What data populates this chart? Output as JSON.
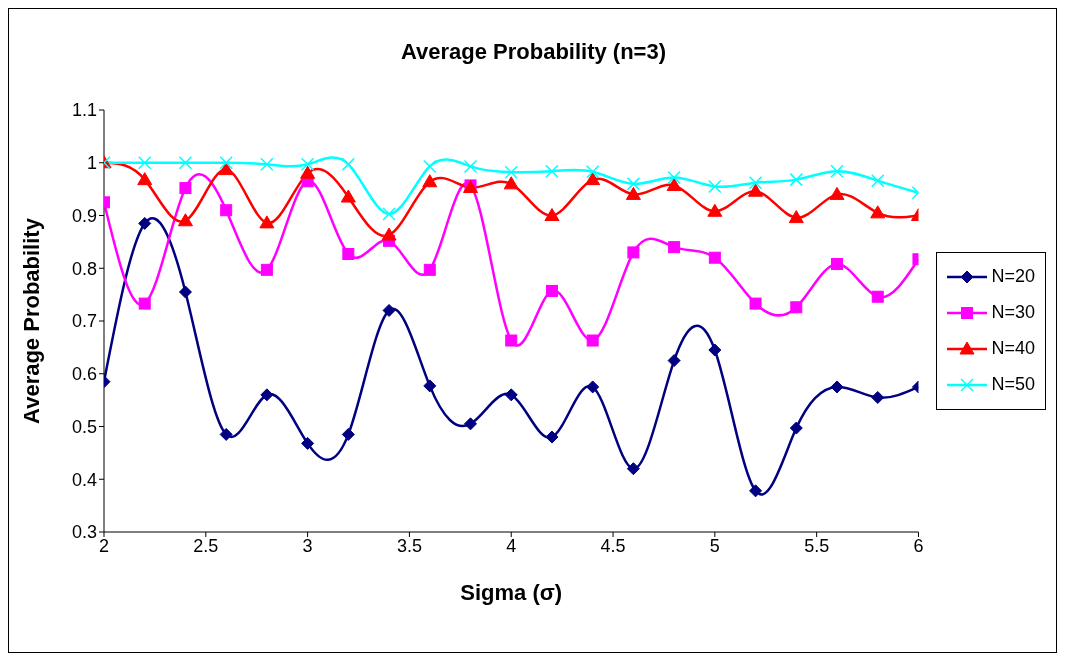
{
  "chart_data": {
    "type": "line",
    "title": "Average Probability (n=3)",
    "xlabel": "Sigma (σ)",
    "ylabel": "Average Probability",
    "x": [
      2,
      2.2,
      2.4,
      2.6,
      2.8,
      3,
      3.2,
      3.4,
      3.6,
      3.8,
      4,
      4.2,
      4.4,
      4.6,
      4.8,
      5,
      5.2,
      5.4,
      5.6,
      5.8,
      6
    ],
    "series": [
      {
        "name": "N=20",
        "color": "#000080",
        "marker": "diamond",
        "values": [
          0.585,
          0.885,
          0.755,
          0.485,
          0.56,
          0.468,
          0.485,
          0.72,
          0.577,
          0.505,
          0.56,
          0.48,
          0.575,
          0.42,
          0.625,
          0.645,
          0.378,
          0.497,
          0.575,
          0.555,
          0.575
        ]
      },
      {
        "name": "N=30",
        "color": "#ff00ff",
        "marker": "square",
        "values": [
          0.925,
          0.733,
          0.952,
          0.91,
          0.797,
          0.965,
          0.827,
          0.852,
          0.797,
          0.957,
          0.663,
          0.757,
          0.663,
          0.83,
          0.84,
          0.82,
          0.733,
          0.726,
          0.808,
          0.746,
          0.817
        ]
      },
      {
        "name": "N=40",
        "color": "#ff0000",
        "marker": "triangle",
        "values": [
          1.0,
          0.968,
          0.89,
          0.987,
          0.886,
          0.98,
          0.935,
          0.863,
          0.964,
          0.953,
          0.96,
          0.9,
          0.968,
          0.94,
          0.957,
          0.908,
          0.946,
          0.896,
          0.94,
          0.905,
          0.9
        ]
      },
      {
        "name": "N=50",
        "color": "#00ffff",
        "marker": "cross",
        "values": [
          1.0,
          1.0,
          1.0,
          1.0,
          0.997,
          0.997,
          0.997,
          0.903,
          0.993,
          0.993,
          0.982,
          0.984,
          0.983,
          0.96,
          0.972,
          0.955,
          0.962,
          0.968,
          0.984,
          0.966,
          0.943
        ]
      }
    ],
    "xlim": [
      2,
      6
    ],
    "xticks": [
      2,
      2.5,
      3,
      3.5,
      4,
      4.5,
      5,
      5.5,
      6
    ],
    "ylim": [
      0.3,
      1.1
    ],
    "yticks": [
      0.3,
      0.4,
      0.5,
      0.6,
      0.7,
      0.8,
      0.9,
      1,
      1.1
    ],
    "grid": false,
    "legend": "right",
    "line_style": "solid"
  }
}
